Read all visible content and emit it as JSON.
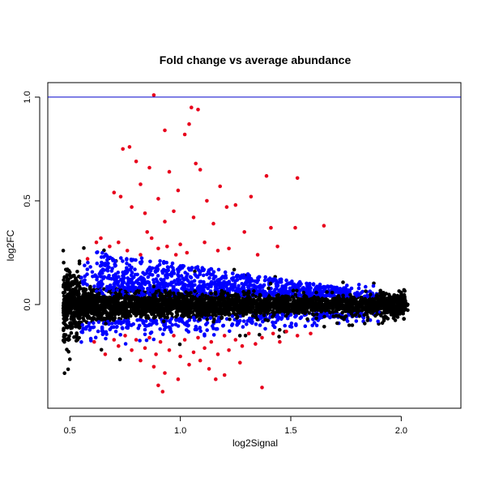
{
  "chart_data": {
    "type": "scatter",
    "title": "Fold change vs average abundance",
    "xlabel": "log2Signal",
    "ylabel": "log2FC",
    "xlim": [
      0.4,
      2.27
    ],
    "ylim": [
      -0.5,
      1.07
    ],
    "xticks": [
      0.5,
      1.0,
      1.5,
      2.0
    ],
    "yticks": [
      0.0,
      0.5,
      1.0
    ],
    "xtick_labels": [
      "0.5",
      "1.0",
      "1.5",
      "2.0"
    ],
    "ytick_labels": [
      "0.0",
      "0.5",
      "1.0"
    ],
    "reference_line": {
      "y": 1.0,
      "color": "#0000cc"
    },
    "grid": false,
    "colors": {
      "base": "#000000",
      "mid": "#0000ff",
      "high": "#e8001c"
    },
    "series": [
      {
        "color": "#e8001c",
        "points": [
          [
            0.88,
            1.01
          ],
          [
            1.05,
            0.95
          ],
          [
            1.08,
            0.94
          ],
          [
            0.93,
            0.84
          ],
          [
            1.02,
            0.82
          ],
          [
            1.04,
            0.87
          ],
          [
            0.74,
            0.75
          ],
          [
            0.77,
            0.76
          ],
          [
            0.8,
            0.69
          ],
          [
            1.07,
            0.68
          ],
          [
            0.86,
            0.66
          ],
          [
            0.95,
            0.64
          ],
          [
            1.09,
            0.65
          ],
          [
            1.39,
            0.62
          ],
          [
            1.53,
            0.61
          ],
          [
            0.82,
            0.58
          ],
          [
            0.99,
            0.55
          ],
          [
            1.18,
            0.57
          ],
          [
            1.32,
            0.52
          ],
          [
            0.7,
            0.54
          ],
          [
            0.73,
            0.52
          ],
          [
            0.9,
            0.51
          ],
          [
            0.78,
            0.47
          ],
          [
            1.12,
            0.5
          ],
          [
            1.25,
            0.48
          ],
          [
            0.84,
            0.44
          ],
          [
            0.97,
            0.45
          ],
          [
            1.21,
            0.47
          ],
          [
            1.52,
            0.37
          ],
          [
            1.65,
            0.38
          ],
          [
            1.06,
            0.42
          ],
          [
            0.93,
            0.4
          ],
          [
            1.15,
            0.39
          ],
          [
            1.29,
            0.35
          ],
          [
            1.41,
            0.37
          ],
          [
            0.72,
            0.3
          ],
          [
            0.87,
            0.32
          ],
          [
            0.94,
            0.28
          ],
          [
            1.0,
            0.29
          ],
          [
            1.11,
            0.3
          ],
          [
            1.22,
            0.27
          ],
          [
            1.35,
            0.24
          ],
          [
            0.76,
            0.26
          ],
          [
            0.82,
            0.24
          ],
          [
            1.03,
            0.25
          ],
          [
            1.17,
            0.26
          ],
          [
            0.9,
            0.27
          ],
          [
            0.98,
            0.24
          ],
          [
            0.62,
            0.3
          ],
          [
            0.68,
            0.28
          ],
          [
            0.75,
            -0.15
          ],
          [
            0.8,
            -0.17
          ],
          [
            0.86,
            -0.16
          ],
          [
            0.91,
            -0.18
          ],
          [
            0.97,
            -0.15
          ],
          [
            1.02,
            -0.17
          ],
          [
            1.08,
            -0.16
          ],
          [
            1.14,
            -0.18
          ],
          [
            1.2,
            -0.15
          ],
          [
            1.25,
            -0.17
          ],
          [
            1.31,
            -0.14
          ],
          [
            1.37,
            -0.16
          ],
          [
            1.42,
            -0.14
          ],
          [
            1.48,
            -0.13
          ],
          [
            0.72,
            -0.2
          ],
          [
            0.78,
            -0.22
          ],
          [
            0.84,
            -0.21
          ],
          [
            0.89,
            -0.24
          ],
          [
            0.95,
            -0.22
          ],
          [
            1.0,
            -0.25
          ],
          [
            1.06,
            -0.23
          ],
          [
            1.11,
            -0.21
          ],
          [
            1.17,
            -0.24
          ],
          [
            1.22,
            -0.22
          ],
          [
            1.28,
            -0.2
          ],
          [
            1.34,
            -0.19
          ],
          [
            0.66,
            -0.24
          ],
          [
            0.88,
            -0.3
          ],
          [
            0.93,
            -0.33
          ],
          [
            1.04,
            -0.29
          ],
          [
            1.13,
            -0.31
          ],
          [
            1.2,
            -0.34
          ],
          [
            1.27,
            -0.28
          ],
          [
            0.99,
            -0.36
          ],
          [
            1.16,
            -0.36
          ],
          [
            0.9,
            -0.39
          ],
          [
            0.92,
            -0.42
          ],
          [
            1.37,
            -0.4
          ],
          [
            0.82,
            -0.27
          ],
          [
            1.09,
            -0.27
          ],
          [
            0.61,
            -0.18
          ],
          [
            0.7,
            -0.17
          ],
          [
            1.45,
            -0.18
          ],
          [
            1.53,
            -0.15
          ],
          [
            1.59,
            -0.14
          ],
          [
            0.58,
            0.22
          ],
          [
            1.44,
            0.28
          ],
          [
            0.64,
            0.32
          ],
          [
            0.85,
            0.35
          ]
        ]
      }
    ]
  }
}
